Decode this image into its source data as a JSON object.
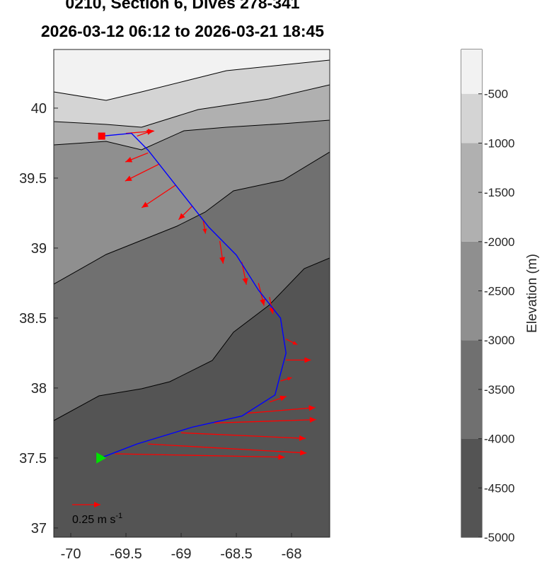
{
  "chart_data": {
    "type": "quiver",
    "title": "0210, Section 6, Dives 278-341",
    "subtitle": "2026-03-12 06:12 to 2026-03-21 18:45",
    "xlim": [
      -70.154,
      -67.654
    ],
    "ylim": [
      36.934,
      40.419
    ],
    "xticks": [
      -70,
      -69.5,
      -69,
      -68.5,
      -68
    ],
    "yticks": [
      37,
      37.5,
      38,
      38.5,
      39,
      39.5,
      40
    ],
    "track": {
      "color": "#0000ff",
      "lon": [
        -69.72,
        -69.45,
        -69.3,
        -69.1,
        -68.9,
        -68.75,
        -68.5,
        -68.3,
        -68.1,
        -68.05,
        -68.15,
        -68.45,
        -68.9,
        -69.4,
        -69.73
      ],
      "lat": [
        39.8,
        39.82,
        39.7,
        39.5,
        39.3,
        39.15,
        38.95,
        38.7,
        38.5,
        38.25,
        37.95,
        37.8,
        37.72,
        37.6,
        37.5
      ]
    },
    "start_color": "#ff0000",
    "end_color": "#00e000",
    "currents": {
      "color": "#ff0000",
      "lon": [
        -69.5,
        -69.4,
        -69.3,
        -69.2,
        -69.05,
        -68.9,
        -68.8,
        -68.65,
        -68.45,
        -68.3,
        -68.2,
        -68.05,
        -68.05,
        -68.1,
        -68.2,
        -68.4,
        -68.7,
        -69.0,
        -69.3,
        -69.6
      ],
      "lat": [
        39.82,
        39.8,
        39.68,
        39.6,
        39.45,
        39.3,
        39.2,
        39.05,
        38.9,
        38.75,
        38.65,
        38.35,
        38.2,
        38.05,
        37.9,
        37.82,
        37.75,
        37.68,
        37.6,
        37.53
      ],
      "u": [
        0.25,
        0.14,
        -0.2,
        -0.3,
        -0.3,
        -0.12,
        0.02,
        0.03,
        0.04,
        0.05,
        0.03,
        0.1,
        0.22,
        0.1,
        0.15,
        0.6,
        0.9,
        1.1,
        1.4,
        1.5
      ],
      "v": [
        0.02,
        0.05,
        -0.08,
        -0.15,
        -0.2,
        -0.12,
        -0.12,
        -0.2,
        -0.2,
        -0.2,
        -0.15,
        -0.05,
        0,
        0.03,
        0.05,
        0.05,
        0.03,
        -0.05,
        -0.08,
        -0.03
      ]
    },
    "scale_arrow": {
      "value": 0.25,
      "label": "0.25 m s",
      "label_sup": "-1"
    },
    "colorbar": {
      "label": "Elevation (m)",
      "lim": [
        -5000,
        -50
      ],
      "ticks": [
        -5000,
        -4500,
        -4000,
        -3500,
        -3000,
        -2500,
        -2000,
        -1500,
        -1000,
        -500
      ],
      "levels": [
        -5000,
        -4000,
        -3000,
        -2000,
        -1000,
        -500,
        -50
      ],
      "colors": [
        "#545454",
        "#707070",
        "#8f8f8f",
        "#b0b0b0",
        "#d4d4d4",
        "#f2f2f2"
      ]
    }
  }
}
